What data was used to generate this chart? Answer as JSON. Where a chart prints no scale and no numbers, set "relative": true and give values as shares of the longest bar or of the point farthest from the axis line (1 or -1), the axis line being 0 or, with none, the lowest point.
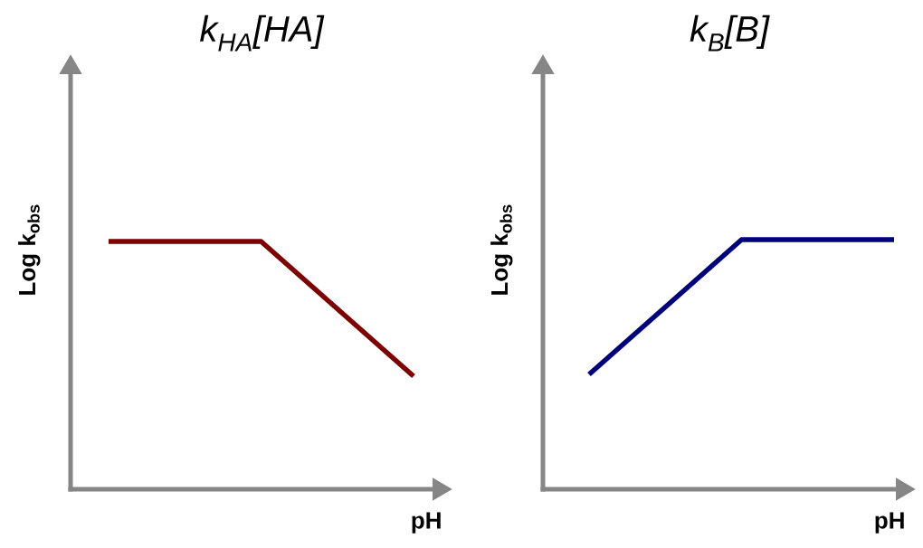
{
  "chart_data": [
    {
      "type": "line",
      "title": "k$_{HA}$[HA]",
      "xlabel": "pH",
      "ylabel": "Log k$_{obs}$",
      "relative": true,
      "categories": [
        null,
        null,
        null
      ],
      "series": [
        {
          "color": "#7f0000",
          "values": [
            1,
            1,
            0.456
          ]
        }
      ]
    },
    {
      "type": "line",
      "title": "k$_{B}$[B]",
      "xlabel": "pH",
      "ylabel": "Log k$_{obs}$",
      "relative": true,
      "categories": [
        null,
        null,
        null
      ],
      "series": [
        {
          "color": "#00007f",
          "values": [
            0.46,
            1,
            1
          ]
        }
      ]
    }
  ]
}
